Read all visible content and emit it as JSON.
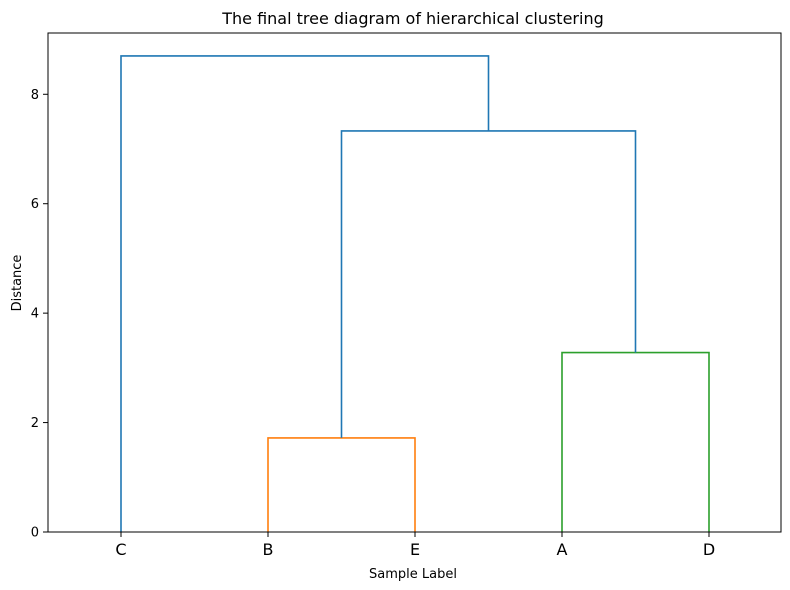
{
  "chart_data": {
    "type": "dendrogram",
    "title": "The final tree diagram of hierarchical clustering",
    "xlabel": "Sample Label",
    "ylabel": "Distance",
    "leaves": [
      "C",
      "B",
      "E",
      "A",
      "D"
    ],
    "ylim": [
      0,
      9.12
    ],
    "yticks": [
      0,
      2,
      4,
      6,
      8
    ],
    "links": [
      {
        "id": "B-E",
        "from": [
          "B",
          "E"
        ],
        "height": 1.72,
        "color": "#ff7f0e"
      },
      {
        "id": "A-D",
        "from": [
          "A",
          "D"
        ],
        "height": 3.28,
        "color": "#2ca02c"
      },
      {
        "id": "BE-AD",
        "from": [
          "B-E",
          "A-D"
        ],
        "height": 7.33,
        "color": "#1f77b4"
      },
      {
        "id": "C-BEAD",
        "from": [
          "C",
          "BE-AD"
        ],
        "height": 8.7,
        "color": "#1f77b4"
      }
    ],
    "grid": false,
    "legend": "none"
  }
}
